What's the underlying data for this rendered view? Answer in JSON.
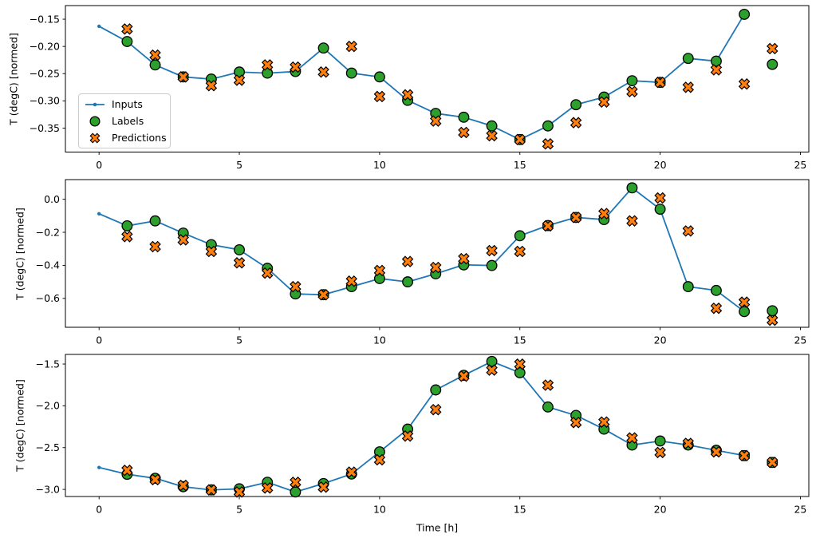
{
  "figure": {
    "xlabel": "Time [h]",
    "background": "#ffffff",
    "colors": {
      "inputs": "#1f77b4",
      "labels": "#2ca02c",
      "predictions": "#ff7f0e",
      "marker_edge": "#000000",
      "spine": "#000000",
      "legend_border": "#cccccc"
    },
    "legend": {
      "position": "upper left inside subplot 1",
      "items": [
        {
          "label": "Inputs",
          "symbol": "line-with-dot"
        },
        {
          "label": "Labels",
          "symbol": "filled-circle"
        },
        {
          "label": "Predictions",
          "symbol": "filled-x"
        }
      ]
    }
  },
  "chart_data": [
    {
      "type": "line",
      "title": "",
      "xlabel": "",
      "ylabel": "T (degC) [normed]",
      "grid": false,
      "xlim": [
        -1.2,
        25.3
      ],
      "ylim": [
        -0.394,
        -0.125
      ],
      "xtick_values": [
        0,
        5,
        10,
        15,
        20,
        25
      ],
      "xtick_labels": [
        "0",
        "5",
        "10",
        "15",
        "20",
        "25"
      ],
      "ytick_values": [
        -0.15,
        -0.2,
        -0.25,
        -0.3,
        -0.35
      ],
      "ytick_labels": [
        "−0.15",
        "−0.20",
        "−0.25",
        "−0.30",
        "−0.35"
      ],
      "series": [
        {
          "name": "Inputs",
          "kind": "line-dot",
          "color": "#1f77b4",
          "x": [
            0,
            1,
            2,
            3,
            4,
            5,
            6,
            7,
            8,
            9,
            10,
            11,
            12,
            13,
            14,
            15,
            16,
            17,
            18,
            19,
            20,
            21,
            22,
            23
          ],
          "y": [
            -0.163,
            -0.191,
            -0.234,
            -0.256,
            -0.26,
            -0.247,
            -0.249,
            -0.246,
            -0.203,
            -0.249,
            -0.256,
            -0.299,
            -0.323,
            -0.33,
            -0.346,
            -0.371,
            -0.346,
            -0.307,
            -0.293,
            -0.263,
            -0.266,
            -0.222,
            -0.227,
            -0.141
          ]
        },
        {
          "name": "Labels",
          "kind": "scatter-circle",
          "color": "#2ca02c",
          "x": [
            1,
            2,
            3,
            4,
            5,
            6,
            7,
            8,
            9,
            10,
            11,
            12,
            13,
            14,
            15,
            16,
            17,
            18,
            19,
            20,
            21,
            22,
            23,
            24
          ],
          "y": [
            -0.191,
            -0.234,
            -0.256,
            -0.26,
            -0.247,
            -0.249,
            -0.246,
            -0.203,
            -0.249,
            -0.256,
            -0.299,
            -0.323,
            -0.33,
            -0.346,
            -0.371,
            -0.346,
            -0.307,
            -0.293,
            -0.263,
            -0.266,
            -0.222,
            -0.227,
            -0.141,
            -0.233
          ]
        },
        {
          "name": "Predictions",
          "kind": "scatter-x",
          "color": "#ff7f0e",
          "x": [
            1,
            2,
            3,
            4,
            5,
            6,
            7,
            8,
            9,
            10,
            11,
            12,
            13,
            14,
            15,
            16,
            17,
            18,
            19,
            20,
            21,
            22,
            23,
            24
          ],
          "y": [
            -0.168,
            -0.216,
            -0.256,
            -0.272,
            -0.262,
            -0.234,
            -0.238,
            -0.247,
            -0.2,
            -0.292,
            -0.289,
            -0.337,
            -0.358,
            -0.364,
            -0.371,
            -0.379,
            -0.34,
            -0.302,
            -0.283,
            -0.266,
            -0.275,
            -0.243,
            -0.269,
            -0.204
          ]
        }
      ]
    },
    {
      "type": "line",
      "title": "",
      "xlabel": "",
      "ylabel": "T (degC) [normed]",
      "grid": false,
      "xlim": [
        -1.2,
        25.3
      ],
      "ylim": [
        -0.775,
        0.119
      ],
      "xtick_values": [
        0,
        5,
        10,
        15,
        20,
        25
      ],
      "xtick_labels": [
        "0",
        "5",
        "10",
        "15",
        "20",
        "25"
      ],
      "ytick_values": [
        0.0,
        -0.2,
        -0.4,
        -0.6
      ],
      "ytick_labels": [
        "0.0",
        "−0.2",
        "−0.4",
        "−0.6"
      ],
      "series": [
        {
          "name": "Inputs",
          "kind": "line-dot",
          "color": "#1f77b4",
          "x": [
            0,
            1,
            2,
            3,
            4,
            5,
            6,
            7,
            8,
            9,
            10,
            11,
            12,
            13,
            14,
            15,
            16,
            17,
            18,
            19,
            20,
            21,
            22,
            23
          ],
          "y": [
            -0.088,
            -0.161,
            -0.131,
            -0.205,
            -0.275,
            -0.306,
            -0.418,
            -0.573,
            -0.578,
            -0.529,
            -0.48,
            -0.5,
            -0.451,
            -0.397,
            -0.401,
            -0.221,
            -0.159,
            -0.11,
            -0.123,
            0.069,
            -0.06,
            -0.529,
            -0.552,
            -0.68
          ]
        },
        {
          "name": "Labels",
          "kind": "scatter-circle",
          "color": "#2ca02c",
          "x": [
            1,
            2,
            3,
            4,
            5,
            6,
            7,
            8,
            9,
            10,
            11,
            12,
            13,
            14,
            15,
            16,
            17,
            18,
            19,
            20,
            21,
            22,
            23,
            24
          ],
          "y": [
            -0.161,
            -0.131,
            -0.205,
            -0.275,
            -0.306,
            -0.418,
            -0.573,
            -0.578,
            -0.529,
            -0.48,
            -0.5,
            -0.451,
            -0.397,
            -0.401,
            -0.221,
            -0.159,
            -0.11,
            -0.123,
            0.069,
            -0.06,
            -0.529,
            -0.552,
            -0.68,
            -0.675
          ]
        },
        {
          "name": "Predictions",
          "kind": "scatter-x",
          "color": "#ff7f0e",
          "x": [
            1,
            2,
            3,
            4,
            5,
            6,
            7,
            8,
            9,
            10,
            11,
            12,
            13,
            14,
            15,
            16,
            17,
            18,
            19,
            20,
            21,
            22,
            23,
            24
          ],
          "y": [
            -0.226,
            -0.287,
            -0.246,
            -0.316,
            -0.385,
            -0.447,
            -0.529,
            -0.578,
            -0.496,
            -0.431,
            -0.377,
            -0.413,
            -0.36,
            -0.311,
            -0.316,
            -0.161,
            -0.11,
            -0.087,
            -0.131,
            0.008,
            -0.192,
            -0.66,
            -0.623,
            -0.732
          ]
        }
      ]
    },
    {
      "type": "line",
      "title": "",
      "xlabel": "Time [h]",
      "ylabel": "T (degC) [normed]",
      "grid": false,
      "xlim": [
        -1.2,
        25.3
      ],
      "ylim": [
        -3.085,
        -1.385
      ],
      "xtick_values": [
        0,
        5,
        10,
        15,
        20,
        25
      ],
      "xtick_labels": [
        "0",
        "5",
        "10",
        "15",
        "20",
        "25"
      ],
      "ytick_values": [
        -1.5,
        -2.0,
        -2.5,
        -3.0
      ],
      "ytick_labels": [
        "−1.5",
        "−2.0",
        "−2.5",
        "−3.0"
      ],
      "series": [
        {
          "name": "Inputs",
          "kind": "line-dot",
          "color": "#1f77b4",
          "x": [
            0,
            1,
            2,
            3,
            4,
            5,
            6,
            7,
            8,
            9,
            10,
            11,
            12,
            13,
            14,
            15,
            16,
            17,
            18,
            19,
            20,
            21,
            22,
            23
          ],
          "y": [
            -2.738,
            -2.819,
            -2.867,
            -2.968,
            -3.006,
            -2.993,
            -2.915,
            -3.031,
            -2.93,
            -2.816,
            -2.551,
            -2.279,
            -1.81,
            -1.635,
            -1.469,
            -1.604,
            -2.014,
            -2.115,
            -2.279,
            -2.469,
            -2.421,
            -2.469,
            -2.532,
            -2.596
          ]
        },
        {
          "name": "Labels",
          "kind": "scatter-circle",
          "color": "#2ca02c",
          "x": [
            1,
            2,
            3,
            4,
            5,
            6,
            7,
            8,
            9,
            10,
            11,
            12,
            13,
            14,
            15,
            16,
            17,
            18,
            19,
            20,
            21,
            22,
            23,
            24
          ],
          "y": [
            -2.819,
            -2.867,
            -2.968,
            -3.006,
            -2.993,
            -2.915,
            -3.031,
            -2.93,
            -2.816,
            -2.551,
            -2.279,
            -1.81,
            -1.635,
            -1.469,
            -1.604,
            -2.014,
            -2.115,
            -2.279,
            -2.469,
            -2.421,
            -2.469,
            -2.532,
            -2.596,
            -2.677
          ]
        },
        {
          "name": "Predictions",
          "kind": "scatter-x",
          "color": "#ff7f0e",
          "x": [
            1,
            2,
            3,
            4,
            5,
            6,
            7,
            8,
            9,
            10,
            11,
            12,
            13,
            14,
            15,
            16,
            17,
            18,
            19,
            20,
            21,
            22,
            23,
            24
          ],
          "y": [
            -2.772,
            -2.883,
            -2.952,
            -3.006,
            -3.031,
            -2.983,
            -2.915,
            -2.973,
            -2.794,
            -2.646,
            -2.362,
            -2.046,
            -1.645,
            -1.573,
            -1.502,
            -1.753,
            -2.2,
            -2.194,
            -2.384,
            -2.558,
            -2.45,
            -2.551,
            -2.596,
            -2.677
          ]
        }
      ]
    }
  ]
}
